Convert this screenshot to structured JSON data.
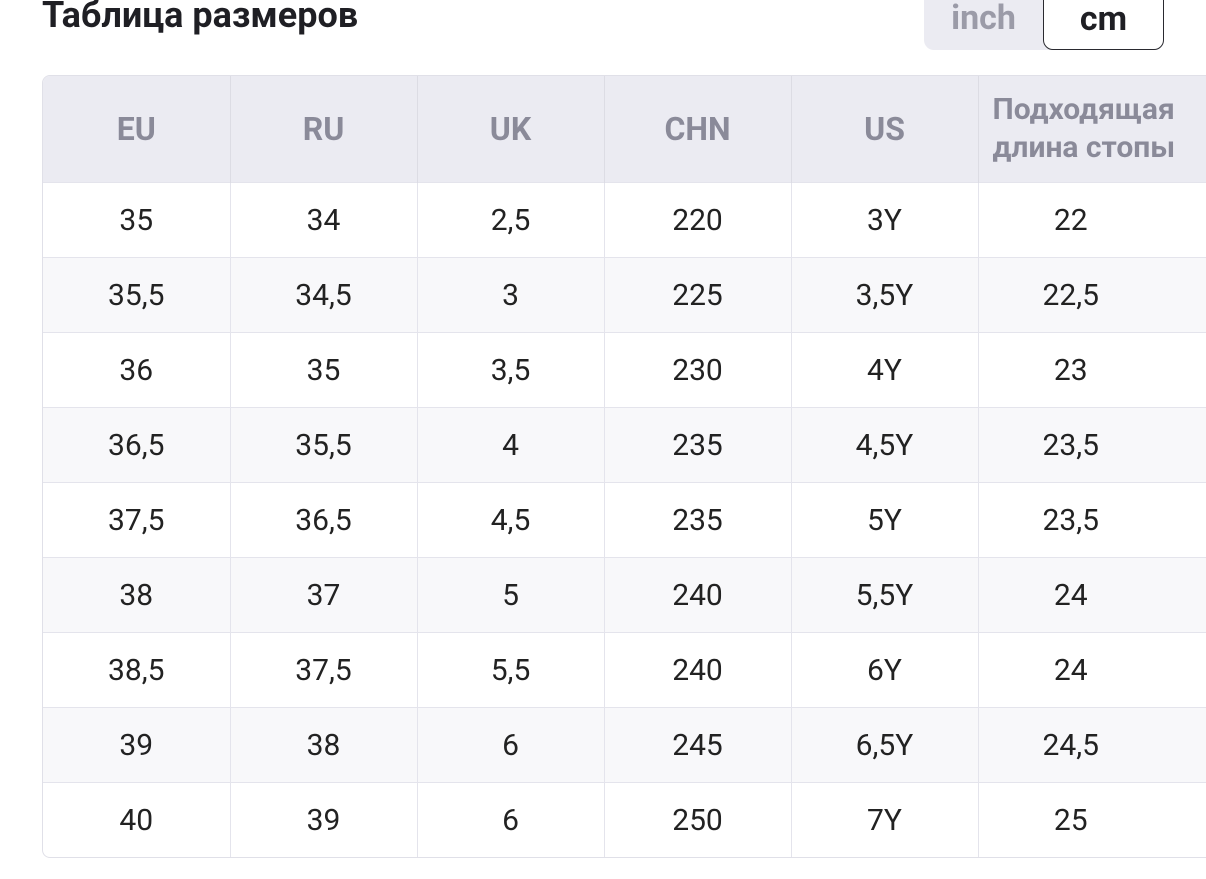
{
  "header": {
    "title": "Таблица размеров",
    "units": [
      "inch",
      "cm"
    ]
  },
  "table": {
    "columns": [
      "EU",
      "RU",
      "UK",
      "CHN",
      "US",
      "Подходящая длина стопы"
    ],
    "rows": [
      [
        "35",
        "34",
        "2,5",
        "220",
        "3Y",
        "22"
      ],
      [
        "35,5",
        "34,5",
        "3",
        "225",
        "3,5Y",
        "22,5"
      ],
      [
        "36",
        "35",
        "3,5",
        "230",
        "4Y",
        "23"
      ],
      [
        "36,5",
        "35,5",
        "4",
        "235",
        "4,5Y",
        "23,5"
      ],
      [
        "37,5",
        "36,5",
        "4,5",
        "235",
        "5Y",
        "23,5"
      ],
      [
        "38",
        "37",
        "5",
        "240",
        "5,5Y",
        "24"
      ],
      [
        "38,5",
        "37,5",
        "5,5",
        "240",
        "6Y",
        "24"
      ],
      [
        "39",
        "38",
        "6",
        "245",
        "6,5Y",
        "24,5"
      ],
      [
        "40",
        "39",
        "6",
        "250",
        "7Y",
        "25"
      ]
    ]
  }
}
